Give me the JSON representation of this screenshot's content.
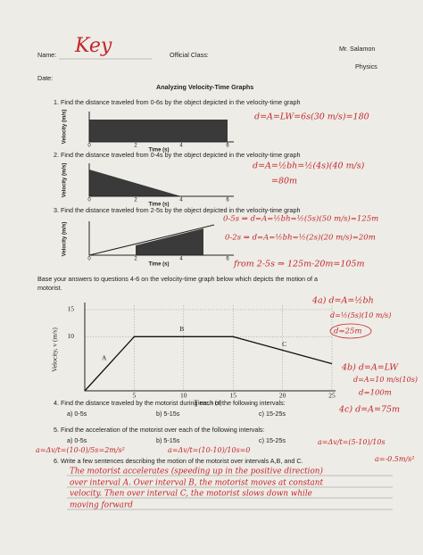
{
  "header": {
    "name_label": "Name:",
    "name_answer": "Key",
    "class_label": "Official Class:",
    "teacher": "Mr. Salamon",
    "date_label": "Date:",
    "subject": "Physics"
  },
  "title": "Analyzing Velocity-Time Graphs",
  "q1": {
    "text": "1.   Find the distance traveled from 0-6s by the object depicted in the velocity-time graph",
    "graph": {
      "y_label": "Velocity (m/s)",
      "x_label": "Time (s)",
      "xticks": [
        "0",
        "2",
        "4",
        "6"
      ]
    },
    "answer": [
      "d=A=LW=6s(30 m/s)=180"
    ]
  },
  "q2": {
    "text": "2.   Find the distance traveled from 0-4s by the object depicted in the velocity-time graph",
    "graph": {
      "y_label": "Velocity (m/s)",
      "x_label": "Time (s)",
      "xticks": [
        "0",
        "2",
        "4",
        "6"
      ]
    },
    "answer": [
      "d=A=½bh=½(4s)(40 m/s)",
      "=80m"
    ]
  },
  "q3": {
    "text": "3.   Find the distance traveled from 2-5s by the object depicted in the velocity-time graph",
    "graph": {
      "y_label": "Velocity (m/s)",
      "x_label": "Time (s)",
      "xticks": [
        "0",
        "2",
        "4",
        "6"
      ]
    },
    "answer": [
      "0-5s ⇒ d=A=½bh=½(5s)(50 m/s)=125m",
      "0-2s ⇒ d=A=½bh=½(2s)(20 m/s)=20m",
      "from 2-5s ⇒ 125m-20m=105m"
    ]
  },
  "intro": [
    "Base your answers to questions 4-6 on the velocity-time graph below which depicts the motion of a",
    "motorist."
  ],
  "main_graph": {
    "y_label": "Velocity, v (m/s)",
    "x_label": "Time, t (s)",
    "xticks": [
      5,
      10,
      15,
      20,
      25
    ],
    "yticks": [
      10,
      15
    ],
    "segment_labels": [
      "A",
      "B",
      "C"
    ],
    "t": [
      0,
      5,
      15,
      25
    ],
    "v": [
      0,
      10,
      10,
      5
    ]
  },
  "q4": {
    "text": "4.   Find the distance traveled by the motorist during each of the following intervals:",
    "parts": [
      "a)  0-5s",
      "b) 5-15s",
      "c) 15-25s"
    ],
    "answer_a": [
      "4a) d=A=½bh",
      "d=½(5s)(10 m/s)",
      "d=25m"
    ],
    "answer_b": [
      "4b) d=A=LW",
      "d=A=10 m/s(10s)",
      "d=100m"
    ],
    "answer_c": [
      "4c) d=A=75m"
    ]
  },
  "q5": {
    "text": "5.   Find the acceleration of the motorist over each of the following intervals:",
    "parts": [
      "a)  0-5s",
      "b) 5-15s",
      "c) 15-25s"
    ],
    "answer": [
      "a=Δv/t=(10-0)/5s=2m/s²",
      "a=Δv/t=(10-10)/10s=0",
      "a=Δv/t=(5-10)/10s",
      "a=-0.5m/s²"
    ]
  },
  "q6": {
    "text": "6.   Write a few sentences describing the motion of the motorist over intervals A,B, and C.",
    "answer": [
      "The motorist accelerates (speeding up in the positive direction)",
      "over interval A. Over interval B, the motorist moves at constant",
      "velocity. Then over interval C, the motorist slows down while",
      "moving forward"
    ]
  }
}
